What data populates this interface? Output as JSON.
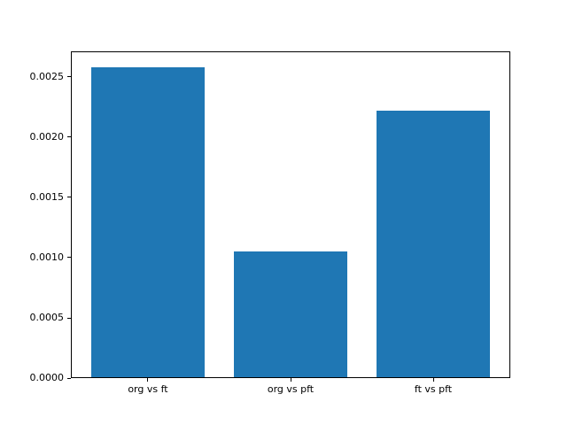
{
  "chart_data": {
    "type": "bar",
    "categories": [
      "org vs ft",
      "org vs pft",
      "ft vs pft"
    ],
    "values": [
      0.00258,
      0.00105,
      0.00222
    ],
    "ylim": [
      0,
      0.002713
    ],
    "yticks": [
      {
        "value": 0.0,
        "label": "0.0000"
      },
      {
        "value": 0.0005,
        "label": "0.0005"
      },
      {
        "value": 0.001,
        "label": "0.0010"
      },
      {
        "value": 0.0015,
        "label": "0.0015"
      },
      {
        "value": 0.002,
        "label": "0.0020"
      },
      {
        "value": 0.0025,
        "label": "0.0025"
      }
    ],
    "bar_color": "#1f77b4",
    "background_color": "#ffffff",
    "grid": false,
    "legend": null,
    "bar_width_fraction": 0.8
  }
}
